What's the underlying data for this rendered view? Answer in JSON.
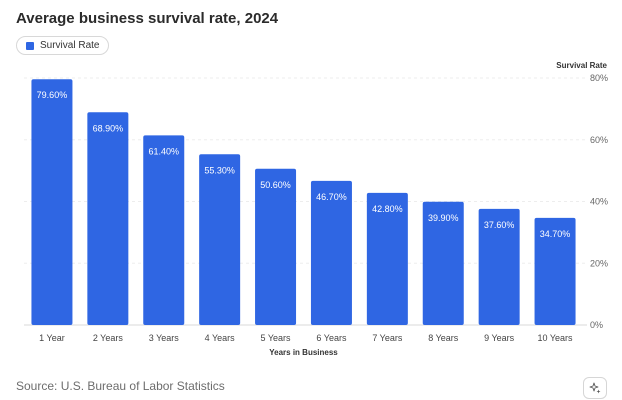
{
  "title": "Average business survival rate, 2024",
  "legend": {
    "label": "Survival Rate",
    "color": "#2f66e3"
  },
  "source": "Source: U.S. Bureau of Labor Statistics",
  "ai_button": {
    "icon": "sparkle-icon"
  },
  "chart_data": {
    "type": "bar",
    "title": "Average business survival rate, 2024",
    "xlabel": "Years in Business",
    "ylabel": "Survival Rate",
    "categories": [
      "1 Year",
      "2 Years",
      "3 Years",
      "4 Years",
      "5 Years",
      "6 Years",
      "7 Years",
      "8 Years",
      "9 Years",
      "10 Years"
    ],
    "series": [
      {
        "name": "Survival Rate",
        "color": "#2f66e3",
        "values": [
          79.6,
          68.9,
          61.4,
          55.3,
          50.6,
          46.7,
          42.8,
          39.9,
          37.6,
          34.7
        ],
        "labels": [
          "79.60%",
          "68.90%",
          "61.40%",
          "55.30%",
          "50.60%",
          "46.70%",
          "42.80%",
          "39.90%",
          "37.60%",
          "34.70%"
        ]
      }
    ],
    "ylim": [
      0,
      80
    ],
    "yticks": [
      0,
      20,
      40,
      60,
      80
    ],
    "ytick_labels": [
      "0%",
      "20%",
      "40%",
      "60%",
      "80%"
    ],
    "y_axis_side": "right",
    "grid": true
  }
}
